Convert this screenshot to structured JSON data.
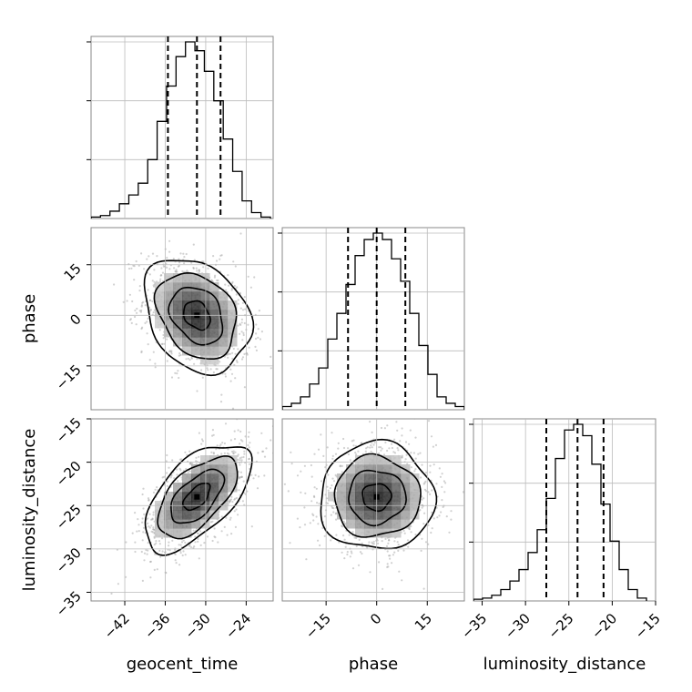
{
  "chart_data": {
    "type": "corner",
    "parameters": [
      "geocent_time",
      "phase",
      "luminosity_distance"
    ],
    "axis_labels": {
      "geocent_time": "geocent_time",
      "phase": "phase",
      "luminosity_distance": "luminosity_distance"
    },
    "ranges": {
      "geocent_time": [
        -47,
        -20
      ],
      "phase": [
        -28,
        26
      ],
      "luminosity_distance": [
        -36,
        -15
      ]
    },
    "ticks": {
      "geocent_time": [
        -42,
        -36,
        -30,
        -24
      ],
      "phase": [
        -15,
        0,
        15
      ],
      "luminosity_distance": [
        -35,
        -30,
        -25,
        -20,
        -15
      ]
    },
    "tick_labels": {
      "geocent_time": [
        "−42",
        "−36",
        "−30",
        "−24"
      ],
      "phase": [
        "−15",
        "0",
        "15"
      ],
      "luminosity_distance": [
        "−35",
        "−30",
        "−25",
        "−20",
        "−15"
      ]
    },
    "histograms": {
      "geocent_time": {
        "edges": [
          -47,
          -45.6,
          -44.2,
          -42.8,
          -41.4,
          -40.0,
          -38.6,
          -37.2,
          -35.8,
          -34.4,
          -33.0,
          -31.6,
          -30.2,
          -28.8,
          -27.4,
          -26.0,
          -24.6,
          -23.2,
          -21.8,
          -20.4
        ],
        "counts": [
          0.5,
          1,
          2.5,
          5,
          8,
          12,
          20,
          33,
          45,
          55,
          60,
          57,
          50,
          40,
          27,
          16,
          6,
          2,
          0.5
        ],
        "quantiles": [
          -35.6,
          -31.3,
          -27.8
        ]
      },
      "phase": {
        "edges": [
          -28,
          -25.3,
          -22.6,
          -19.9,
          -17.2,
          -14.5,
          -11.8,
          -9.1,
          -6.4,
          -3.7,
          -1.0,
          1.7,
          4.4,
          7.1,
          9.8,
          12.5,
          15.2,
          17.9,
          20.6,
          23.3,
          26
        ],
        "counts": [
          1,
          2,
          4,
          8,
          13,
          22,
          30,
          39,
          48,
          53,
          55,
          53,
          47,
          40,
          30,
          20,
          11,
          4,
          2,
          1
        ],
        "quantiles": [
          -8.5,
          0,
          8.5
        ]
      },
      "luminosity_distance": {
        "edges": [
          -36,
          -34.95,
          -33.9,
          -32.85,
          -31.8,
          -30.75,
          -29.7,
          -28.65,
          -27.6,
          -26.55,
          -25.5,
          -24.45,
          -23.4,
          -22.35,
          -21.3,
          -20.25,
          -19.2,
          -18.15,
          -17.1,
          -16.05
        ],
        "counts": [
          0.3,
          0.5,
          1,
          2,
          3.5,
          5.5,
          8.5,
          12.5,
          18,
          25,
          30,
          31,
          29,
          24,
          17,
          10.5,
          5.5,
          2,
          0.5
        ],
        "quantiles": [
          -27.6,
          -24.0,
          -21.0
        ]
      }
    },
    "joint": {
      "phase_vs_geocent_time": {
        "center": [
          -31.3,
          0
        ],
        "cov": [
          [
            15.5,
            -9.0
          ],
          [
            -9.0,
            72.0
          ]
        ]
      },
      "luminosity_distance_vs_geocent_time": {
        "center": [
          -31.3,
          -24.0
        ],
        "cov": [
          [
            15.5,
            7.2
          ],
          [
            7.2,
            9.6
          ]
        ]
      },
      "luminosity_distance_vs_phase": {
        "center": [
          0,
          -24.0
        ],
        "cov": [
          [
            72.0,
            0.0
          ],
          [
            0.0,
            9.6
          ]
        ]
      }
    },
    "contour_levels_sigma": [
      0.5,
      1.0,
      1.5,
      2.0
    ],
    "grid": true
  }
}
